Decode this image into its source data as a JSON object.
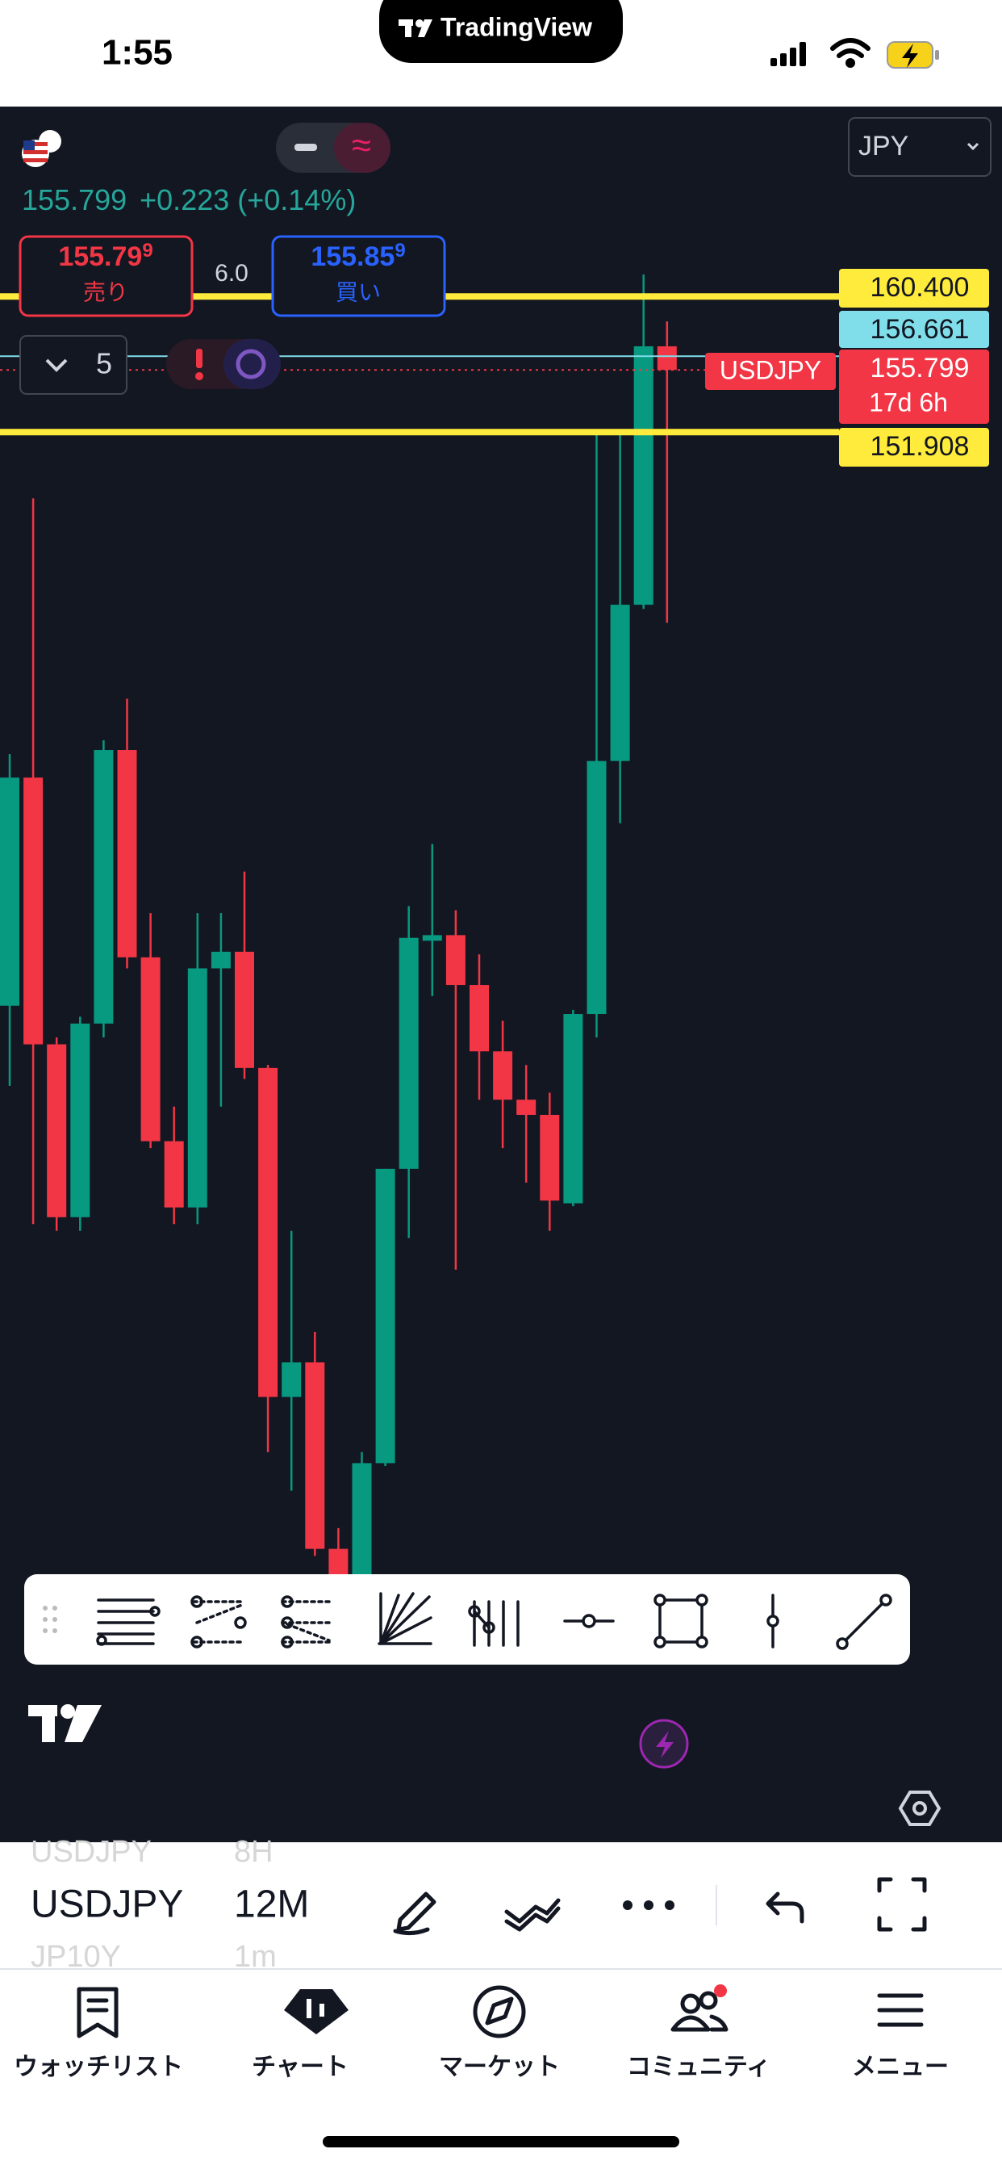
{
  "status_bar": {
    "time": "1:55",
    "app": "TradingView"
  },
  "header": {
    "currency": "JPY",
    "price": "155.799",
    "change": "+0.223 (+0.14%)"
  },
  "order": {
    "sell_price": "155.79",
    "sell_price_sup": "9",
    "sell_label": "売り",
    "spread": "6.0",
    "buy_price": "155.85",
    "buy_price_sup": "9",
    "buy_label": "買い",
    "quantity": "5"
  },
  "chart_data": {
    "type": "candlestick",
    "symbol_label": "USDJPY",
    "countdown": "17d 6h",
    "up_color": "#089981",
    "down_color": "#f23645",
    "ylim": [
      80.2,
      172.3
    ],
    "candles": [
      {
        "o": 115.97,
        "h": 131.73,
        "l": 110.95,
        "c": 130.26
      },
      {
        "o": 130.26,
        "h": 147.75,
        "l": 102.29,
        "c": 113.55
      },
      {
        "o": 113.55,
        "h": 113.98,
        "l": 101.86,
        "c": 102.72
      },
      {
        "o": 102.72,
        "h": 115.28,
        "l": 101.86,
        "c": 114.85
      },
      {
        "o": 114.85,
        "h": 132.6,
        "l": 113.98,
        "c": 131.99
      },
      {
        "o": 131.99,
        "h": 135.2,
        "l": 118.31,
        "c": 119.0
      },
      {
        "o": 119.0,
        "h": 121.77,
        "l": 107.05,
        "c": 107.48
      },
      {
        "o": 107.48,
        "h": 109.65,
        "l": 102.29,
        "c": 103.33
      },
      {
        "o": 103.33,
        "h": 121.77,
        "l": 102.29,
        "c": 118.31
      },
      {
        "o": 118.31,
        "h": 121.77,
        "l": 109.65,
        "c": 119.35
      },
      {
        "o": 119.35,
        "h": 124.37,
        "l": 111.38,
        "c": 112.07
      },
      {
        "o": 112.07,
        "h": 112.25,
        "l": 88.0,
        "c": 91.46
      },
      {
        "o": 91.46,
        "h": 101.86,
        "l": 85.58,
        "c": 93.63
      },
      {
        "o": 93.63,
        "h": 95.53,
        "l": 81.5,
        "c": 81.94
      },
      {
        "o": 81.94,
        "h": 83.24,
        "l": 78.5,
        "c": 79.0
      },
      {
        "o": 79.0,
        "h": 88.0,
        "l": 78.5,
        "c": 87.31
      },
      {
        "o": 87.31,
        "h": 105.75,
        "l": 87.13,
        "c": 105.75
      },
      {
        "o": 105.75,
        "h": 122.21,
        "l": 101.42,
        "c": 120.22
      },
      {
        "o": 120.04,
        "h": 126.1,
        "l": 116.58,
        "c": 120.39
      },
      {
        "o": 120.39,
        "h": 121.95,
        "l": 99.43,
        "c": 117.27
      },
      {
        "o": 117.27,
        "h": 119.18,
        "l": 110.08,
        "c": 113.11
      },
      {
        "o": 113.11,
        "h": 115.02,
        "l": 107.05,
        "c": 110.08
      },
      {
        "o": 110.08,
        "h": 112.25,
        "l": 104.89,
        "c": 109.13
      },
      {
        "o": 109.13,
        "h": 110.52,
        "l": 101.86,
        "c": 103.76
      },
      {
        "o": 103.59,
        "h": 115.71,
        "l": 103.41,
        "c": 115.45
      },
      {
        "o": 115.45,
        "h": 151.91,
        "l": 113.98,
        "c": 131.3
      },
      {
        "o": 131.3,
        "h": 151.91,
        "l": 127.4,
        "c": 141.09
      },
      {
        "o": 141.09,
        "h": 161.78,
        "l": 140.83,
        "c": 157.28
      },
      {
        "o": 157.28,
        "h": 158.84,
        "l": 139.96,
        "c": 155.799
      }
    ],
    "price_lines": [
      {
        "value": 160.4,
        "label": "160.400",
        "color": "#ffeb3b",
        "style": "thick"
      },
      {
        "value": 156.661,
        "label": "156.661",
        "color": "#80deea",
        "style": "thin"
      },
      {
        "value": 155.799,
        "label": "155.799",
        "color": "#f23645",
        "style": "dotted"
      },
      {
        "value": 151.908,
        "label": "151.908",
        "color": "#ffeb3b",
        "style": "thick"
      }
    ]
  },
  "symbol_bar": {
    "items": [
      {
        "symbol": "USDJPY",
        "interval": "8H"
      },
      {
        "symbol": "USDJPY",
        "interval": "12M"
      },
      {
        "symbol": "JP10Y",
        "interval": "1m"
      }
    ]
  },
  "nav": {
    "tabs": [
      "ウォッチリスト",
      "チャート",
      "マーケット",
      "コミュニティ",
      "メニュー"
    ]
  }
}
